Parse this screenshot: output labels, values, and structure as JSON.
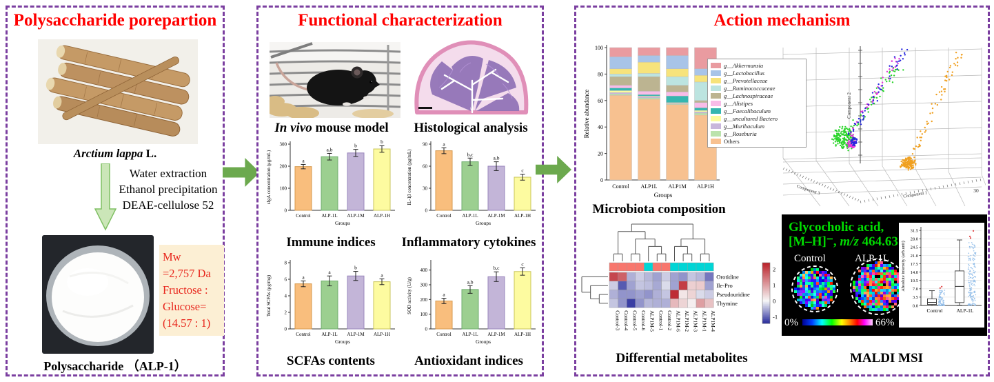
{
  "panels": {
    "preparation": {
      "title": "Polysaccharide porepartion",
      "plant_name_italic": "Arctium lappa",
      "plant_name_suffix": " L.",
      "process_steps": [
        "Water extraction",
        "Ethanol precipitation",
        "DEAE-cellulose 52"
      ],
      "info_lines": [
        "Mw",
        "=2,757 Da",
        "Fructose :",
        "Glucose=",
        "(14.57 : 1)"
      ],
      "product_caption": "Polysaccharide （ALP-1）"
    },
    "characterization": {
      "title": "Functional characterization",
      "mouse_caption_italic": "In vivo",
      "mouse_caption_rest": " mouse model",
      "histology_caption": "Histological analysis",
      "captions": {
        "immune": "Immune indices",
        "cytokines": "Inflammatory cytokines",
        "scfas": "SCFAs contents",
        "antioxidant": "Antioxidant indices"
      }
    },
    "mechanism": {
      "title": "Action mechanism",
      "microbiota_caption": "Microbiota composition",
      "metabolites_caption": "Differential metabolites",
      "maldi_caption": "MALDI MSI",
      "maldi": {
        "compound_line1": "Glycocholic acid,",
        "adduct": "[M–H]⁻, ",
        "mz_label_italic": "m/z",
        "mz_value": " 464.63",
        "left_label": "Control",
        "right_label": "ALP-1L",
        "scale_min": "0%",
        "scale_max": "66%"
      }
    }
  },
  "chart_data": {
    "immune": {
      "type": "bar",
      "title": "Immune indices",
      "categories": [
        "Control",
        "ALP-1L",
        "ALP-1M",
        "ALP-1H"
      ],
      "values": [
        198,
        243,
        260,
        278
      ],
      "errors": [
        10,
        15,
        16,
        15
      ],
      "letters": [
        "a",
        "a,b",
        "b",
        "b"
      ],
      "ylabel": "sIgA concentration (μg/mL)",
      "xlabel": "Groups",
      "ylim": [
        0,
        300
      ],
      "yticks": [
        0,
        100,
        200,
        300
      ],
      "colors": [
        "#F9BE7D",
        "#9CCF90",
        "#C3B5D8",
        "#FDFBA0"
      ],
      "strokes": [
        "#D79A4E",
        "#6FAE6F",
        "#9A86BC",
        "#C9C45B"
      ]
    },
    "cytokines": {
      "type": "bar",
      "title": "Inflammatory cytokines",
      "categories": [
        "Control",
        "ALP-1L",
        "ALP-1M",
        "ALP-1H"
      ],
      "values": [
        81,
        66,
        60,
        45
      ],
      "errors": [
        4,
        5,
        6,
        4
      ],
      "letters": [
        "a",
        "b,c",
        "a,b",
        "c"
      ],
      "ylabel": "IL-1β concentration (pg/mL)",
      "xlabel": "Groups",
      "ylim": [
        0,
        90
      ],
      "yticks": [
        0,
        30,
        60,
        90
      ],
      "colors": [
        "#F9BE7D",
        "#9CCF90",
        "#C3B5D8",
        "#FDFBA0"
      ],
      "strokes": [
        "#D79A4E",
        "#6FAE6F",
        "#9A86BC",
        "#C9C45B"
      ]
    },
    "scfas": {
      "type": "bar",
      "title": "SCFAs contents",
      "categories": [
        "Control",
        "ALP-1L",
        "ALP-1M",
        "ALP-1H"
      ],
      "values": [
        5.45,
        5.8,
        6.4,
        5.7
      ],
      "errors": [
        0.35,
        0.6,
        0.55,
        0.35
      ],
      "letters": [
        "a",
        "a",
        "b",
        "a"
      ],
      "ylabel": "Total SCFAs (μg/mg)",
      "xlabel": "Groups",
      "ylim": [
        0,
        8
      ],
      "yticks": [
        0,
        2,
        4,
        6,
        8
      ],
      "colors": [
        "#F9BE7D",
        "#9CCF90",
        "#C3B5D8",
        "#FDFBA0"
      ],
      "strokes": [
        "#D79A4E",
        "#6FAE6F",
        "#9A86BC",
        "#C9C45B"
      ]
    },
    "antioxidant": {
      "type": "bar",
      "title": "Antioxidant indices",
      "categories": [
        "Control",
        "ALP-1L",
        "ALP-1M",
        "ALP-1H"
      ],
      "values": [
        190,
        268,
        355,
        390
      ],
      "errors": [
        18,
        26,
        33,
        25
      ],
      "letters": [
        "a",
        "a,b",
        "b,c",
        "c"
      ],
      "ylabel": "SOD activity (U/g)",
      "xlabel": "Groups",
      "ylim": [
        0,
        450
      ],
      "yticks": [
        0,
        100,
        200,
        300,
        400
      ],
      "colors": [
        "#F9BE7D",
        "#9CCF90",
        "#C3B5D8",
        "#FDFBA0"
      ],
      "strokes": [
        "#D79A4E",
        "#6FAE6F",
        "#9A86BC",
        "#C9C45B"
      ]
    },
    "microbiota": {
      "type": "stacked-bar",
      "title": "Microbiota composition",
      "categories": [
        "Control",
        "ALP1L",
        "ALP1M",
        "ALP1H"
      ],
      "ylabel": "Relative abundance",
      "xlabel": "Groups",
      "ylim": [
        0,
        100
      ],
      "yticks": [
        0,
        20,
        40,
        60,
        80,
        100
      ],
      "series": [
        {
          "name": "Others",
          "color": "#F7C190",
          "values": [
            64,
            61,
            57,
            49
          ]
        },
        {
          "name": "g__Roseburia",
          "color": "#BBE3AC",
          "values": [
            1,
            1,
            0.5,
            1.5
          ]
        },
        {
          "name": "g__Muribaculum",
          "color": "#C8B6DB",
          "values": [
            1,
            1,
            0.5,
            1
          ]
        },
        {
          "name": "g__uncultured Bactero",
          "color": "#FCFC9E",
          "values": [
            1.5,
            0.5,
            0.5,
            1
          ]
        },
        {
          "name": "g__Faecalibaculum",
          "color": "#35B6B0",
          "values": [
            2,
            1,
            5,
            2
          ]
        },
        {
          "name": "g__Alistipes",
          "color": "#F8BCE8",
          "values": [
            2,
            2.5,
            3,
            4
          ]
        },
        {
          "name": "g__Lachnospiraceae",
          "color": "#BCB491",
          "values": [
            6.5,
            11,
            5,
            1.5
          ]
        },
        {
          "name": "g__Ruminococcaceae",
          "color": "#BCE4E0",
          "values": [
            2,
            2.5,
            6.5,
            14
          ]
        },
        {
          "name": "g__Prevotellaceae",
          "color": "#F7E37B",
          "values": [
            4,
            8.5,
            6,
            5
          ]
        },
        {
          "name": "g__Lactobacillus",
          "color": "#A8C4E8",
          "values": [
            9,
            5,
            10,
            5
          ]
        },
        {
          "name": "g__Akkermansia",
          "color": "#E99BA0",
          "values": [
            7,
            6,
            6,
            16
          ]
        }
      ]
    },
    "metabolites_heatmap": {
      "type": "heatmap",
      "title": "Differential metabolites",
      "rows": [
        "Orotidine",
        "Ile-Pro",
        "Pseudouridine",
        "Thymine"
      ],
      "cols": [
        "Control-3",
        "Control-4",
        "Control-5",
        "Control-6",
        "ALP1M-5",
        "Control-1",
        "Control-2",
        "ALP1M-6",
        "ALP1M-2",
        "ALP1M-3",
        "ALP1M-1",
        "ALP1M-4"
      ],
      "values": [
        [
          2.0,
          1.7,
          -0.5,
          -0.3,
          -0.45,
          -0.6,
          -0.3,
          -0.6,
          -0.7,
          -0.35,
          -0.45,
          -0.9
        ],
        [
          -0.3,
          -1.1,
          -0.6,
          -0.35,
          -0.4,
          -0.55,
          -0.2,
          -0.6,
          2.1,
          0.45,
          0.5,
          -0.6
        ],
        [
          -0.5,
          -0.7,
          -0.7,
          -0.6,
          -0.7,
          -0.5,
          -0.35,
          2.3,
          0.2,
          0.4,
          -0.2,
          -0.3
        ],
        [
          -0.35,
          -0.7,
          -1.3,
          -0.7,
          -0.45,
          -0.5,
          -0.5,
          0.7,
          0.4,
          0.1,
          1.0,
          0.6
        ]
      ],
      "col_groups": [
        "control",
        "control",
        "control",
        "control",
        "alp",
        "control",
        "control",
        "alp",
        "alp",
        "alp",
        "alp",
        "alp"
      ],
      "group_colors": {
        "control": "#F8766D",
        "alp": "#00D5D5"
      },
      "colorbar_ticks": [
        2,
        1,
        0,
        -1
      ],
      "vmin": -1.4,
      "vmax": 2.4,
      "col_tree": [
        [
          [
            0,
            1
          ],
          [
            [
              2,
              3
            ],
            [
              4,
              [
                5,
                6
              ]
            ]
          ]
        ],
        [
          [
            7,
            [
              8,
              9
            ]
          ],
          [
            10,
            11
          ]
        ]
      ],
      "row_tree": [
        0,
        [
          1,
          [
            2,
            3
          ]
        ]
      ]
    },
    "pca3d": {
      "type": "scatter3d",
      "axis_labels": {
        "x": "Component 1",
        "y": "Component 2",
        "z": "Component 3"
      },
      "corner_tick": "30",
      "clusters": [
        {
          "color": "#2BD42B",
          "blob": [
            95,
            148,
            21,
            160
          ],
          "tail": [
            98,
            143,
            175,
            40,
            55,
            7
          ]
        },
        {
          "color": "#E238D8",
          "blob": [
            106,
            156,
            9,
            45
          ],
          "tail": [
            101,
            149,
            172,
            30,
            45,
            5
          ]
        },
        {
          "color": "#2626DD",
          "blob": [
            109,
            152,
            7,
            30
          ],
          "tail": [
            103,
            146,
            183,
            16,
            50,
            6
          ]
        },
        {
          "color": "#F0A020",
          "blob": [
            187,
            184,
            13,
            130
          ],
          "tail": [
            191,
            178,
            264,
            22,
            60,
            6
          ]
        }
      ]
    },
    "maldi_boxplot": {
      "type": "box",
      "ylabel": "Absolute intensity (arb.unit)",
      "yticks": [
        "0.0",
        "3.5",
        "7.0",
        "10.5",
        "14.0",
        "17.5",
        "21.0",
        "24.5",
        "28.0",
        "31.5"
      ],
      "categories": [
        "Control",
        "ALP-1L"
      ],
      "boxes": [
        {
          "lo": 0.0,
          "q1": 0.4,
          "med": 1.3,
          "q3": 2.8,
          "hi": 6.2
        },
        {
          "lo": 0.1,
          "q1": 1.2,
          "med": 8.0,
          "q3": 14.5,
          "hi": 27.5
        }
      ],
      "outliers": [
        [
          7.3,
          7.9
        ],
        [
          28.3,
          29.0,
          31.3
        ]
      ]
    }
  }
}
